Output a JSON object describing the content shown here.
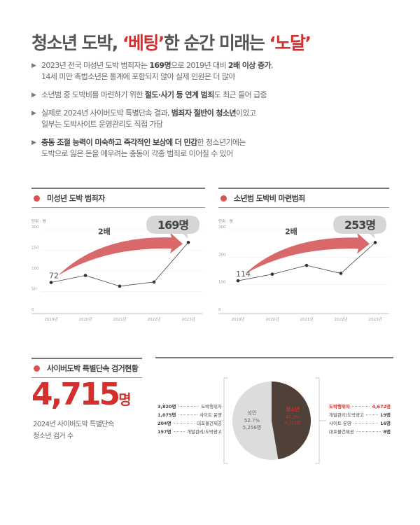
{
  "title": {
    "part1": "청소년 도박, ",
    "part2": "‘베팅’",
    "part3": "한 순간 미래는 ",
    "part4": "‘노달’"
  },
  "bullets": [
    {
      "icon": "triangle-bullet-icon",
      "segments": [
        {
          "text": "2023년 전국 미성년 도박 범죄자는 ",
          "bold": false
        },
        {
          "text": "169명",
          "bold": true
        },
        {
          "text": "으로 2019년 대비 ",
          "bold": false
        },
        {
          "text": "2배 이상 증가",
          "bold": true
        },
        {
          "text": ",",
          "bold": false
        }
      ],
      "line2": "14세 미만 촉법소년은 통계에 포함되지 않아 실제 인원은 더 많아"
    },
    {
      "icon": "triangle-bullet-icon",
      "segments": [
        {
          "text": "소년범 중 도박비를 마련하기 위한 ",
          "bold": false
        },
        {
          "text": "절도·사기 등 연계 범죄",
          "bold": true
        },
        {
          "text": "도 최근 들어 급증",
          "bold": false
        }
      ],
      "line2": ""
    },
    {
      "icon": "triangle-bullet-icon",
      "segments": [
        {
          "text": "실제로 2024년 사이버도박 특별단속 결과, ",
          "bold": false
        },
        {
          "text": "범죄자 절반이 청소년",
          "bold": true
        },
        {
          "text": "이었고",
          "bold": false
        }
      ],
      "line2": "일부는 도박사이트 운영관리도 직접 가담"
    },
    {
      "icon": "triangle-bullet-icon",
      "segments": [
        {
          "text": "충동 조절 능력이 미숙하고 즉각적인 보상에 더 민감",
          "bold": true
        },
        {
          "text": "한 청소년기에는",
          "bold": false
        }
      ],
      "line2": "도박으로 잃은 돈을 메우려는 충동이 각종 범죄로 이어질 수 있어"
    }
  ],
  "sections": {
    "chart1_label": "미성년 도박 범죄자",
    "chart2_label": "소년범 도박비 마련범죄",
    "stats_label": "사이버도박 특별단속 검거현황"
  },
  "colors": {
    "accent_red": "#d32f2f",
    "arrow_red": "#d9686a",
    "pie_dark": "#4f4137",
    "pie_light": "#dcdcdc",
    "bubble_gray": "#d6d6d6"
  },
  "chart_data": [
    {
      "type": "line",
      "title": "미성년 도박 범죄자",
      "unit_label": "단위 : 명",
      "categories": [
        "2019년",
        "2020년",
        "2021년",
        "2022년",
        "2023년"
      ],
      "values": [
        72,
        89,
        63,
        73,
        169
      ],
      "ylim": [
        0,
        200
      ],
      "yticks": [
        0,
        50,
        100,
        150,
        200
      ],
      "grid": true,
      "annotations": {
        "start_label": "72",
        "end_label": "169명",
        "multiplier": "2배"
      }
    },
    {
      "type": "line",
      "title": "소년범 도박비 마련범죄",
      "unit_label": "단위 : 명",
      "categories": [
        "2019년",
        "2020년",
        "2021년",
        "2022년",
        "2023년"
      ],
      "values": [
        114,
        138,
        170,
        141,
        253
      ],
      "ylim": [
        0,
        300
      ],
      "yticks": [
        0,
        100,
        200,
        300
      ],
      "grid": true,
      "annotations": {
        "start_label": "114",
        "end_label": "253명",
        "multiplier": "2배"
      }
    },
    {
      "type": "pie",
      "title": "사이버도박 특별단속 검거현황",
      "slices": [
        {
          "label": "청소년",
          "percent": 47.3,
          "count": "4,715명",
          "value": 4715
        },
        {
          "label": "성인",
          "percent": 52.7,
          "count": "5,256명",
          "value": 5256
        }
      ],
      "adult_breakdown": [
        {
          "count": "3,820명",
          "label": "도박행위자"
        },
        {
          "count": "1,075명",
          "label": "사이트 운영"
        },
        {
          "count": "204명",
          "label": "대포물건제공"
        },
        {
          "count": "157명",
          "label": "개발관리/도박광고"
        }
      ],
      "youth_breakdown": [
        {
          "label": "도박행위자",
          "count": "4,672명",
          "highlight": true
        },
        {
          "label": "개발관리/도박광고",
          "count": "19명",
          "highlight": false
        },
        {
          "label": "사이트 운영",
          "count": "16명",
          "highlight": false
        },
        {
          "label": "대포물건제공",
          "count": "8명",
          "highlight": false
        }
      ]
    }
  ],
  "stats": {
    "big_number": "4,715",
    "big_unit": "명",
    "caption_line1": "2024년 사이버도박 특별단속",
    "caption_line2": "청소년 검거 수",
    "pie_adult_label": "성인",
    "pie_adult_pct": "52.7%",
    "pie_adult_count": "5,256명",
    "pie_youth_label": "청소년",
    "pie_youth_pct": "47.3%",
    "pie_youth_count": "4,715명"
  }
}
